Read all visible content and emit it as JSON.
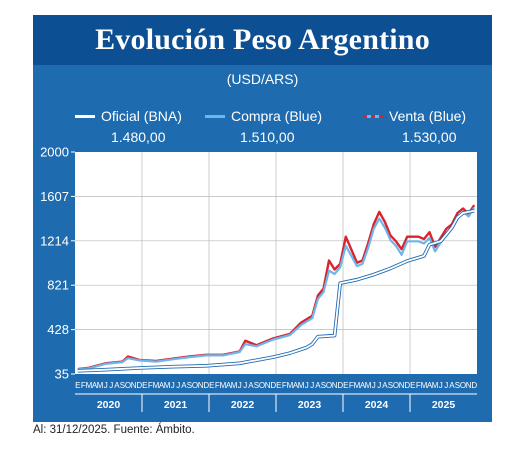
{
  "header": {
    "title": "Evolución Peso Argentino",
    "subtitle": "(USD/ARS)"
  },
  "legend": [
    {
      "name": "Oficial (BNA)",
      "value": "1.480,00",
      "color": "#ffffff"
    },
    {
      "name": "Compra (Blue)",
      "value": "1.510,00",
      "color": "#6fb4ea"
    },
    {
      "name": "Venta (Blue)",
      "value": "1.530,00",
      "color": "#d8242c"
    }
  ],
  "footnote": "Al: 31/12/2025. Fuente: Ámbito.",
  "colors": {
    "panel": "#1f6bb0",
    "title_bar": "#0d4f93",
    "plot_bg": "#ffffff",
    "oficial": "#ffffff",
    "compra": "#6fb4ea",
    "venta": "#d8242c"
  },
  "chart_data": {
    "type": "line",
    "title": "Evolución Peso Argentino",
    "subtitle": "(USD/ARS)",
    "ylim": [
      35,
      2000
    ],
    "y_ticks": [
      35,
      428,
      821,
      1214,
      1607,
      2000
    ],
    "x_years": [
      "2020",
      "2021",
      "2022",
      "2023",
      "2024",
      "2025"
    ],
    "x_month_letters": [
      "E",
      "F",
      "M",
      "A",
      "M",
      "J",
      "J",
      "A",
      "S",
      "O",
      "N",
      "D"
    ],
    "x_start": "2020-01",
    "x_end": "2025-12",
    "grid": true,
    "legend_position": "top",
    "series": [
      {
        "name": "Oficial (BNA)",
        "color": "#ffffff",
        "points": [
          [
            "2020-01",
            63
          ],
          [
            "2020-06",
            73
          ],
          [
            "2020-12",
            88
          ],
          [
            "2021-06",
            100
          ],
          [
            "2021-12",
            108
          ],
          [
            "2022-06",
            130
          ],
          [
            "2022-12",
            185
          ],
          [
            "2023-03",
            220
          ],
          [
            "2023-06",
            270
          ],
          [
            "2023-07",
            300
          ],
          [
            "2023-08",
            365
          ],
          [
            "2023-11",
            375
          ],
          [
            "2023-12",
            840
          ],
          [
            "2024-03",
            870
          ],
          [
            "2024-06",
            915
          ],
          [
            "2024-09",
            970
          ],
          [
            "2024-12",
            1035
          ],
          [
            "2025-02",
            1065
          ],
          [
            "2025-03",
            1080
          ],
          [
            "2025-04",
            1180
          ],
          [
            "2025-06",
            1210
          ],
          [
            "2025-08",
            1330
          ],
          [
            "2025-09",
            1420
          ],
          [
            "2025-10",
            1460
          ],
          [
            "2025-12",
            1480
          ]
        ]
      },
      {
        "name": "Compra (Blue)",
        "color": "#6fb4ea",
        "points": [
          [
            "2020-01",
            75
          ],
          [
            "2020-03",
            85
          ],
          [
            "2020-06",
            125
          ],
          [
            "2020-09",
            140
          ],
          [
            "2020-10",
            175
          ],
          [
            "2020-12",
            155
          ],
          [
            "2021-03",
            145
          ],
          [
            "2021-06",
            165
          ],
          [
            "2021-09",
            185
          ],
          [
            "2021-12",
            200
          ],
          [
            "2022-03",
            200
          ],
          [
            "2022-06",
            230
          ],
          [
            "2022-07",
            300
          ],
          [
            "2022-09",
            280
          ],
          [
            "2022-12",
            340
          ],
          [
            "2023-03",
            380
          ],
          [
            "2023-05",
            470
          ],
          [
            "2023-07",
            530
          ],
          [
            "2023-08",
            700
          ],
          [
            "2023-09",
            760
          ],
          [
            "2023-10",
            950
          ],
          [
            "2023-11",
            920
          ],
          [
            "2023-12",
            980
          ],
          [
            "2024-01",
            1170
          ],
          [
            "2024-03",
            990
          ],
          [
            "2024-04",
            1010
          ],
          [
            "2024-05",
            1150
          ],
          [
            "2024-06",
            1320
          ],
          [
            "2024-07",
            1410
          ],
          [
            "2024-08",
            1330
          ],
          [
            "2024-09",
            1220
          ],
          [
            "2024-10",
            1170
          ],
          [
            "2024-11",
            1090
          ],
          [
            "2024-12",
            1210
          ],
          [
            "2025-02",
            1210
          ],
          [
            "2025-03",
            1190
          ],
          [
            "2025-04",
            1240
          ],
          [
            "2025-05",
            1120
          ],
          [
            "2025-06",
            1200
          ],
          [
            "2025-07",
            1280
          ],
          [
            "2025-08",
            1330
          ],
          [
            "2025-09",
            1420
          ],
          [
            "2025-10",
            1470
          ],
          [
            "2025-11",
            1430
          ],
          [
            "2025-12",
            1510
          ]
        ]
      },
      {
        "name": "Venta (Blue)",
        "color": "#d8242c",
        "points": [
          [
            "2020-01",
            78
          ],
          [
            "2020-03",
            90
          ],
          [
            "2020-06",
            130
          ],
          [
            "2020-09",
            145
          ],
          [
            "2020-10",
            190
          ],
          [
            "2020-12",
            160
          ],
          [
            "2021-03",
            150
          ],
          [
            "2021-06",
            170
          ],
          [
            "2021-09",
            190
          ],
          [
            "2021-12",
            205
          ],
          [
            "2022-03",
            205
          ],
          [
            "2022-06",
            235
          ],
          [
            "2022-07",
            330
          ],
          [
            "2022-09",
            290
          ],
          [
            "2022-12",
            350
          ],
          [
            "2023-03",
            390
          ],
          [
            "2023-05",
            490
          ],
          [
            "2023-07",
            550
          ],
          [
            "2023-08",
            730
          ],
          [
            "2023-09",
            790
          ],
          [
            "2023-10",
            1040
          ],
          [
            "2023-11",
            960
          ],
          [
            "2023-12",
            1010
          ],
          [
            "2024-01",
            1250
          ],
          [
            "2024-03",
            1020
          ],
          [
            "2024-04",
            1040
          ],
          [
            "2024-05",
            1190
          ],
          [
            "2024-06",
            1360
          ],
          [
            "2024-07",
            1470
          ],
          [
            "2024-08",
            1380
          ],
          [
            "2024-09",
            1260
          ],
          [
            "2024-10",
            1210
          ],
          [
            "2024-11",
            1140
          ],
          [
            "2024-12",
            1250
          ],
          [
            "2025-02",
            1250
          ],
          [
            "2025-03",
            1230
          ],
          [
            "2025-04",
            1290
          ],
          [
            "2025-05",
            1160
          ],
          [
            "2025-06",
            1240
          ],
          [
            "2025-07",
            1320
          ],
          [
            "2025-08",
            1360
          ],
          [
            "2025-09",
            1460
          ],
          [
            "2025-10",
            1500
          ],
          [
            "2025-11",
            1455
          ],
          [
            "2025-12",
            1530
          ]
        ]
      }
    ]
  }
}
